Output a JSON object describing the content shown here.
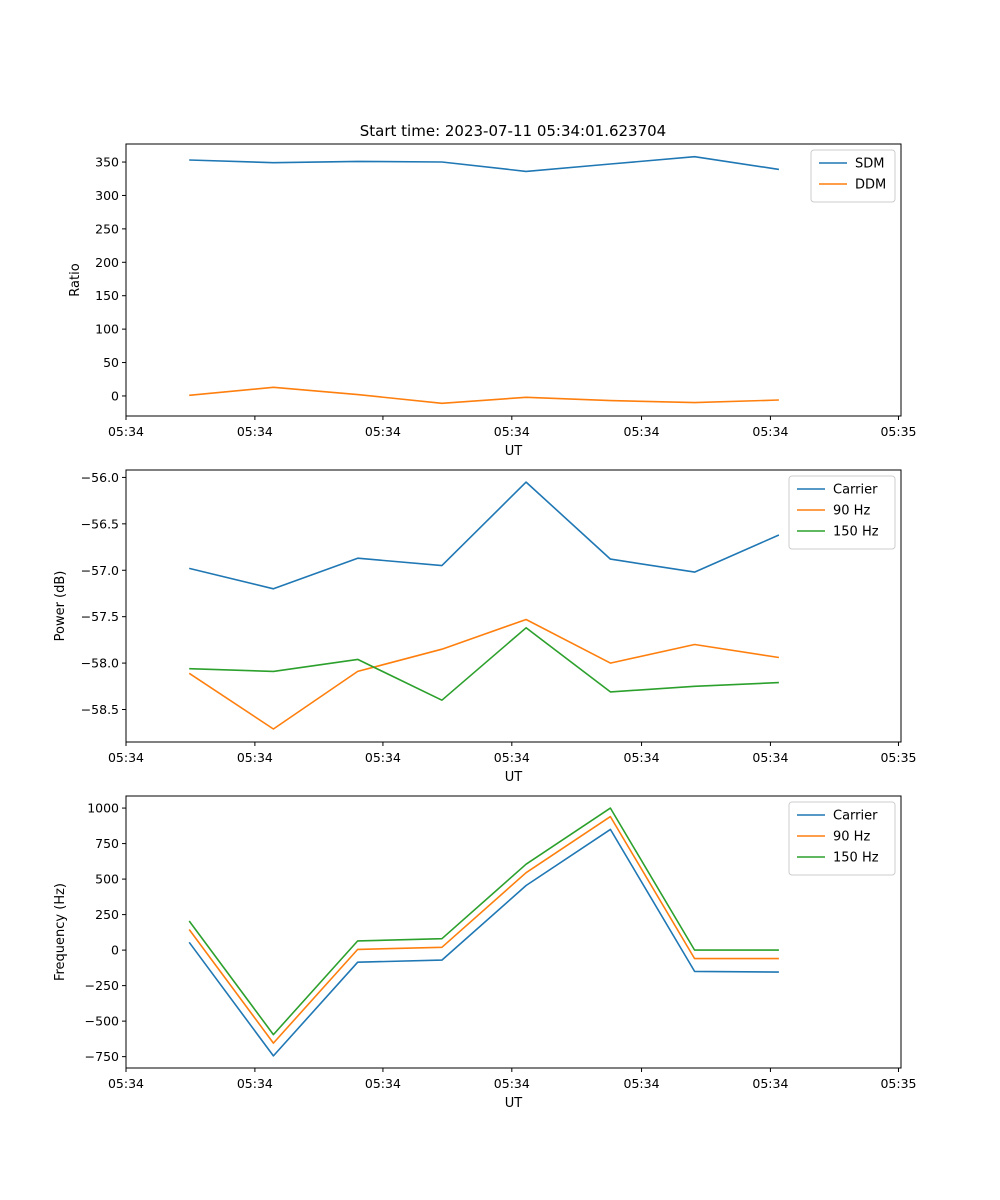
{
  "figure": {
    "title": "Start time: 2023-07-11 05:34:01.623704"
  },
  "chart_data": [
    {
      "type": "line",
      "title": "Start time: 2023-07-11 05:34:01.623704",
      "xlabel": "UT",
      "ylabel": "Ratio",
      "x": [
        0,
        1,
        2,
        3,
        4,
        5,
        6,
        7
      ],
      "xlim": [
        -0.75,
        8.45
      ],
      "xticks": [
        -0.75,
        0.78,
        2.3,
        3.83,
        5.37,
        6.9,
        8.42
      ],
      "xtick_labels": [
        "05:34",
        "05:34",
        "05:34",
        "05:34",
        "05:34",
        "05:34",
        "05:35"
      ],
      "ylim": [
        -30,
        377
      ],
      "yticks": [
        0,
        50,
        100,
        150,
        200,
        250,
        300,
        350
      ],
      "ytick_labels": [
        "0",
        "50",
        "100",
        "150",
        "200",
        "250",
        "300",
        "350"
      ],
      "legend_position": "top-right",
      "series": [
        {
          "name": "SDM",
          "color": "#1f77b4",
          "values": [
            353,
            349,
            351,
            350,
            336,
            347,
            358,
            339
          ]
        },
        {
          "name": "DDM",
          "color": "#ff7f0e",
          "values": [
            1,
            13,
            2,
            -11,
            -2,
            -7,
            -10,
            -6
          ]
        }
      ]
    },
    {
      "type": "line",
      "title": "",
      "xlabel": "UT",
      "ylabel": "Power (dB)",
      "x": [
        0,
        1,
        2,
        3,
        4,
        5,
        6,
        7
      ],
      "xlim": [
        -0.75,
        8.45
      ],
      "xticks": [
        -0.75,
        0.78,
        2.3,
        3.83,
        5.37,
        6.9,
        8.42
      ],
      "xtick_labels": [
        "05:34",
        "05:34",
        "05:34",
        "05:34",
        "05:34",
        "05:34",
        "05:35"
      ],
      "ylim": [
        -58.85,
        -55.92
      ],
      "yticks": [
        -58.5,
        -58.0,
        -57.5,
        -57.0,
        -56.5,
        -56.0
      ],
      "ytick_labels": [
        "−58.5",
        "−58.0",
        "−57.5",
        "−57.0",
        "−56.5",
        "−56.0"
      ],
      "legend_position": "top-right",
      "series": [
        {
          "name": "Carrier",
          "color": "#1f77b4",
          "values": [
            -56.98,
            -57.2,
            -56.87,
            -56.95,
            -56.05,
            -56.88,
            -57.02,
            -56.62
          ]
        },
        {
          "name": "90 Hz",
          "color": "#ff7f0e",
          "values": [
            -58.11,
            -58.71,
            -58.09,
            -57.85,
            -57.53,
            -58.0,
            -57.8,
            -57.94
          ]
        },
        {
          "name": "150 Hz",
          "color": "#2ca02c",
          "values": [
            -58.06,
            -58.09,
            -57.96,
            -58.4,
            -57.62,
            -58.31,
            -58.25,
            -58.21
          ]
        }
      ]
    },
    {
      "type": "line",
      "title": "",
      "xlabel": "UT",
      "ylabel": "Frequency (Hz)",
      "x": [
        0,
        1,
        2,
        3,
        4,
        5,
        6,
        7
      ],
      "xlim": [
        -0.75,
        8.45
      ],
      "xticks": [
        -0.75,
        0.78,
        2.3,
        3.83,
        5.37,
        6.9,
        8.42
      ],
      "xtick_labels": [
        "05:34",
        "05:34",
        "05:34",
        "05:34",
        "05:34",
        "05:34",
        "05:35"
      ],
      "ylim": [
        -830,
        1085
      ],
      "yticks": [
        -750,
        -500,
        -250,
        0,
        250,
        500,
        750,
        1000
      ],
      "ytick_labels": [
        "−750",
        "−500",
        "−250",
        "0",
        "250",
        "500",
        "750",
        "1000"
      ],
      "legend_position": "top-right",
      "series": [
        {
          "name": "Carrier",
          "color": "#1f77b4",
          "values": [
            55,
            -745,
            -85,
            -70,
            455,
            850,
            -150,
            -155
          ]
        },
        {
          "name": "90 Hz",
          "color": "#ff7f0e",
          "values": [
            145,
            -655,
            5,
            20,
            545,
            940,
            -60,
            -60
          ]
        },
        {
          "name": "150 Hz",
          "color": "#2ca02c",
          "values": [
            205,
            -595,
            65,
            80,
            605,
            1000,
            0,
            0
          ]
        }
      ]
    }
  ]
}
